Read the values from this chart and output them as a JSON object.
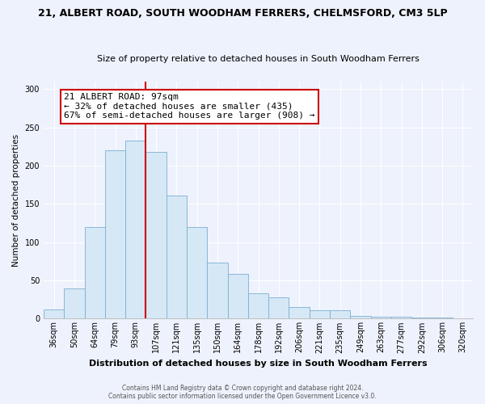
{
  "title1": "21, ALBERT ROAD, SOUTH WOODHAM FERRERS, CHELMSFORD, CM3 5LP",
  "title2": "Size of property relative to detached houses in South Woodham Ferrers",
  "xlabel": "Distribution of detached houses by size in South Woodham Ferrers",
  "ylabel": "Number of detached properties",
  "bar_labels": [
    "36sqm",
    "50sqm",
    "64sqm",
    "79sqm",
    "93sqm",
    "107sqm",
    "121sqm",
    "135sqm",
    "150sqm",
    "164sqm",
    "178sqm",
    "192sqm",
    "206sqm",
    "221sqm",
    "235sqm",
    "249sqm",
    "263sqm",
    "277sqm",
    "292sqm",
    "306sqm",
    "320sqm"
  ],
  "bar_values": [
    12,
    40,
    120,
    220,
    233,
    218,
    161,
    120,
    73,
    59,
    33,
    28,
    15,
    11,
    11,
    4,
    2,
    2,
    1,
    1,
    0
  ],
  "bar_color": "#d6e8f5",
  "bar_edge_color": "#7bafd4",
  "vline_x_bar_idx": 4,
  "vline_color": "#cc0000",
  "annotation_title": "21 ALBERT ROAD: 97sqm",
  "annotation_line1": "← 32% of detached houses are smaller (435)",
  "annotation_line2": "67% of semi-detached houses are larger (908) →",
  "annotation_box_facecolor": "#ffffff",
  "annotation_box_edgecolor": "#cc0000",
  "ylim": [
    0,
    310
  ],
  "yticks": [
    0,
    50,
    100,
    150,
    200,
    250,
    300
  ],
  "footnote1": "Contains HM Land Registry data © Crown copyright and database right 2024.",
  "footnote2": "Contains public sector information licensed under the Open Government Licence v3.0.",
  "background_color": "#eef2fc",
  "grid_color": "#ffffff",
  "title1_fontsize": 9,
  "title2_fontsize": 8,
  "xlabel_fontsize": 8,
  "ylabel_fontsize": 7.5,
  "tick_fontsize": 7,
  "annot_fontsize": 8,
  "footnote_fontsize": 5.5
}
